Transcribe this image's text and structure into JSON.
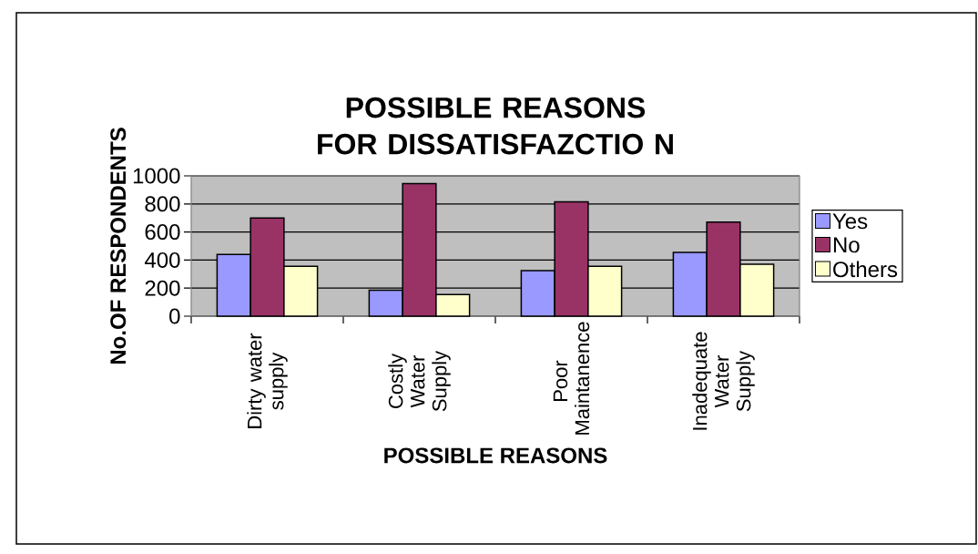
{
  "chart_data": {
    "type": "bar",
    "title": "POSSIBLE REASONS FOR DISSATISFAZCTIO N",
    "xlabel": "POSSIBLE REASONS",
    "ylabel": "No.OF RESPONDENTS",
    "categories": [
      "Dirty water supply",
      "Costly Water Supply",
      "Poor Maintanence",
      "Inadequate Water Supply"
    ],
    "series": [
      {
        "name": "Yes",
        "color": "#9999ff",
        "values": [
          440,
          185,
          325,
          455
        ]
      },
      {
        "name": "No",
        "color": "#993366",
        "values": [
          700,
          945,
          815,
          670
        ]
      },
      {
        "name": "Others",
        "color": "#ffffcc",
        "values": [
          355,
          155,
          355,
          370
        ]
      }
    ],
    "ylim": [
      0,
      1000
    ],
    "yticks": [
      0,
      200,
      400,
      600,
      800,
      1000
    ],
    "grid": "y",
    "legend": "right"
  }
}
